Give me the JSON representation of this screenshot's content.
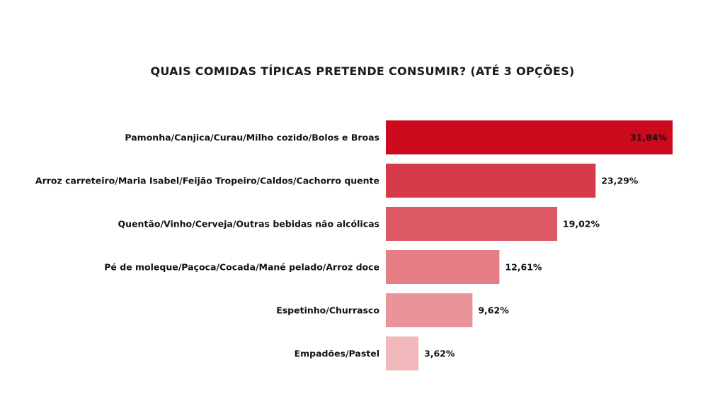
{
  "chart_data": {
    "type": "bar",
    "orientation": "horizontal",
    "title": "QUAIS COMIDAS TÍPICAS PRETENDE CONSUMIR? (ATÉ 3 OPÇÕES)",
    "categories": [
      "Pamonha/Canjica/Curau/Milho cozido/Bolos e Broas",
      "Arroz carreteiro/Maria Isabel/Feijão Tropeiro/Caldos/Cachorro quente",
      "Quentão/Vinho/Cerveja/Outras bebidas não alcólicas",
      "Pé de moleque/Paçoca/Cocada/Mané pelado/Arroz doce",
      "Espetinho/Churrasco",
      "Empadões/Pastel"
    ],
    "values": [
      31.84,
      23.29,
      19.02,
      12.61,
      9.62,
      3.62
    ],
    "value_labels": [
      "31,84%",
      "23,29%",
      "19,02%",
      "12,61%",
      "9,62%",
      "3,62%"
    ],
    "colors": [
      "#cc0a1e",
      "#d63a4a",
      "#dc5965",
      "#e57d85",
      "#e9949a",
      "#f0b8bb"
    ],
    "xlim": [
      0,
      31.84
    ],
    "grid": false,
    "legend": "none"
  }
}
